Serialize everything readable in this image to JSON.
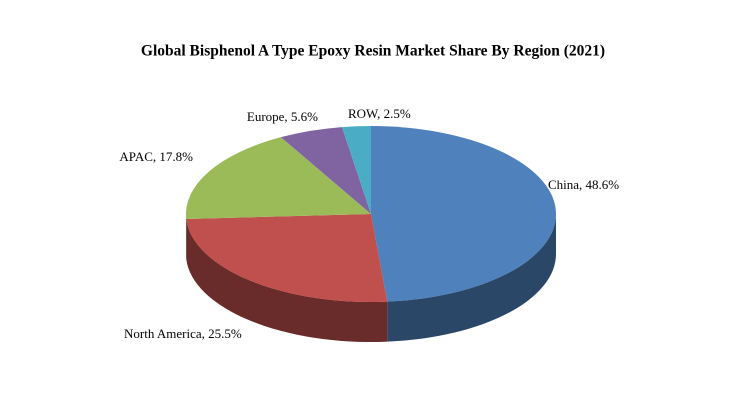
{
  "chart_data": {
    "type": "pie",
    "title": "Global Bisphenol A Type Epoxy Resin Market Share By Region (2021)",
    "categories": [
      "China",
      "North America",
      "APAC",
      "Europe",
      "ROW"
    ],
    "values": [
      48.6,
      25.5,
      17.8,
      5.6,
      2.5
    ],
    "value_labels": [
      "China,  48.6%",
      "North America,  25.5%",
      "APAC, 17.8%",
      "Europe,  5.6%",
      "ROW, 2.5%"
    ],
    "colors": [
      "#4f81bd",
      "#c0504d",
      "#9bbb59",
      "#8064a2",
      "#4bacc6"
    ]
  }
}
